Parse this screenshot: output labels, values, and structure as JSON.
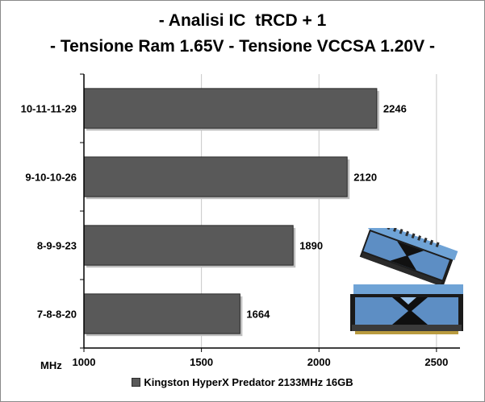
{
  "chart_data": {
    "type": "bar",
    "orientation": "horizontal",
    "title": "- Analisi IC  tRCD + 1",
    "subtitle": "- Tensione Ram 1.65V - Tensione VCCSA 1.20V -",
    "xlabel": "MHz",
    "ylabel": "",
    "categories": [
      "10-11-11-29",
      "9-10-10-26",
      "8-9-9-23",
      "7-8-8-20"
    ],
    "series": [
      {
        "name": "Kingston HyperX Predator 2133MHz 16GB",
        "values": [
          2246,
          2120,
          1890,
          1664
        ]
      }
    ],
    "xlim": [
      1000,
      2600
    ],
    "xticks": [
      1000,
      1500,
      2000,
      2500
    ],
    "grid": true,
    "legend_position": "bottom",
    "colors": {
      "bar": "#595959",
      "bar_edge": "#2b2b2b",
      "grid": "#c8c8c8",
      "axis": "#000000"
    }
  }
}
